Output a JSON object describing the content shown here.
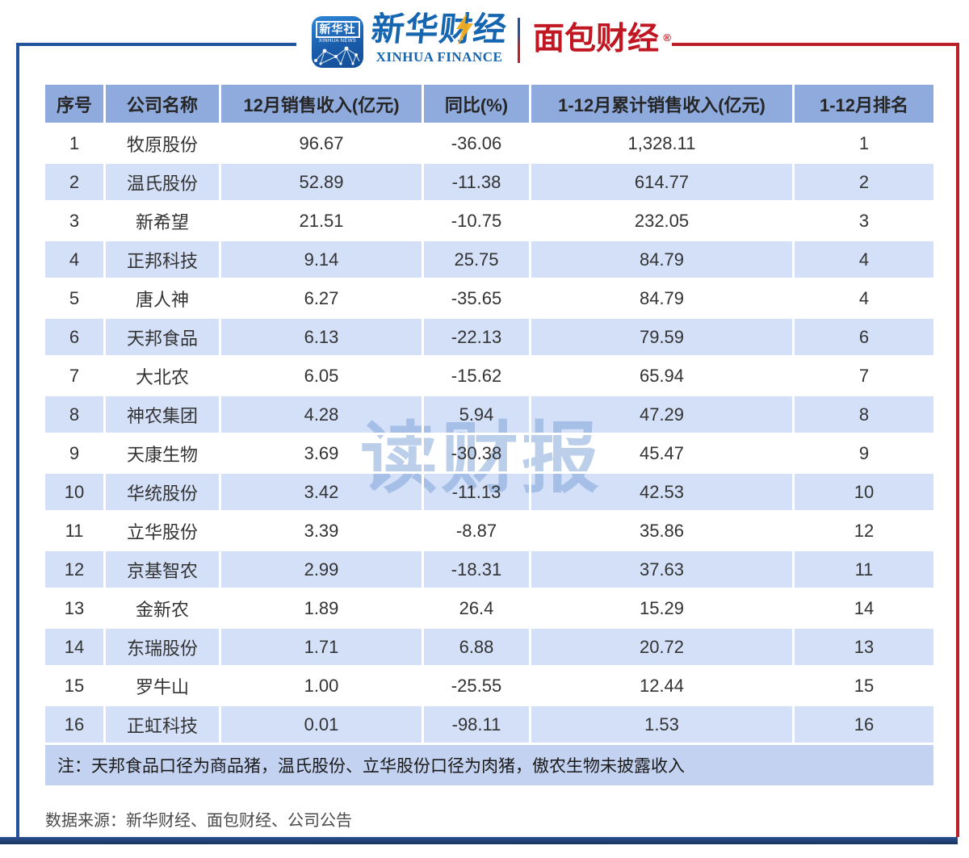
{
  "brand": {
    "xinhua_news": {
      "cn": "新华社",
      "en": "XINHUA NEWS"
    },
    "xinhua_finance": {
      "cn": "新华财经",
      "en": "XINHUA FINANCE"
    },
    "mianbao_finance": {
      "cn": "面包财经",
      "reg": "®"
    }
  },
  "watermark": "读财报",
  "chart_data": {
    "type": "table",
    "columns": [
      "序号",
      "公司名称",
      "12月销售收入(亿元)",
      "同比(%)",
      "1-12月累计销售收入(亿元)",
      "1-12月排名"
    ],
    "rows": [
      [
        "1",
        "牧原股份",
        "96.67",
        "-36.06",
        "1,328.11",
        "1"
      ],
      [
        "2",
        "温氏股份",
        "52.89",
        "-11.38",
        "614.77",
        "2"
      ],
      [
        "3",
        "新希望",
        "21.51",
        "-10.75",
        "232.05",
        "3"
      ],
      [
        "4",
        "正邦科技",
        "9.14",
        "25.75",
        "84.79",
        "4"
      ],
      [
        "5",
        "唐人神",
        "6.27",
        "-35.65",
        "84.79",
        "4"
      ],
      [
        "6",
        "天邦食品",
        "6.13",
        "-22.13",
        "79.59",
        "6"
      ],
      [
        "7",
        "大北农",
        "6.05",
        "-15.62",
        "65.94",
        "7"
      ],
      [
        "8",
        "神农集团",
        "4.28",
        "5.94",
        "47.29",
        "8"
      ],
      [
        "9",
        "天康生物",
        "3.69",
        "-30.38",
        "45.47",
        "9"
      ],
      [
        "10",
        "华统股份",
        "3.42",
        "-11.13",
        "42.53",
        "10"
      ],
      [
        "11",
        "立华股份",
        "3.39",
        "-8.87",
        "35.86",
        "12"
      ],
      [
        "12",
        "京基智农",
        "2.99",
        "-18.31",
        "37.63",
        "11"
      ],
      [
        "13",
        "金新农",
        "1.89",
        "26.4",
        "15.29",
        "14"
      ],
      [
        "14",
        "东瑞股份",
        "1.71",
        "6.88",
        "20.72",
        "13"
      ],
      [
        "15",
        "罗牛山",
        "1.00",
        "-25.55",
        "12.44",
        "15"
      ],
      [
        "16",
        "正虹科技",
        "0.01",
        "-98.11",
        "1.53",
        "16"
      ]
    ],
    "note": "注：天邦食品口径为商品猪，温氏股份、立华股份口径为肉猪，傲农生物未披露收入",
    "source": "数据来源：新华财经、面包财经、公司公告"
  },
  "colors": {
    "frame_blue": "#24539e",
    "frame_red": "#b92028",
    "header_bg": "#8faadc",
    "stripe_blue": "#d3e0f8",
    "note_bg": "#c3d2f0",
    "bottom_bar": "#1d3a6b",
    "logo_blue": "#1565b0",
    "logo_red": "#c01722",
    "bolt_yellow": "#f0ac1e",
    "watermark_blue": "#789ed6",
    "text_dark": "#333333"
  }
}
